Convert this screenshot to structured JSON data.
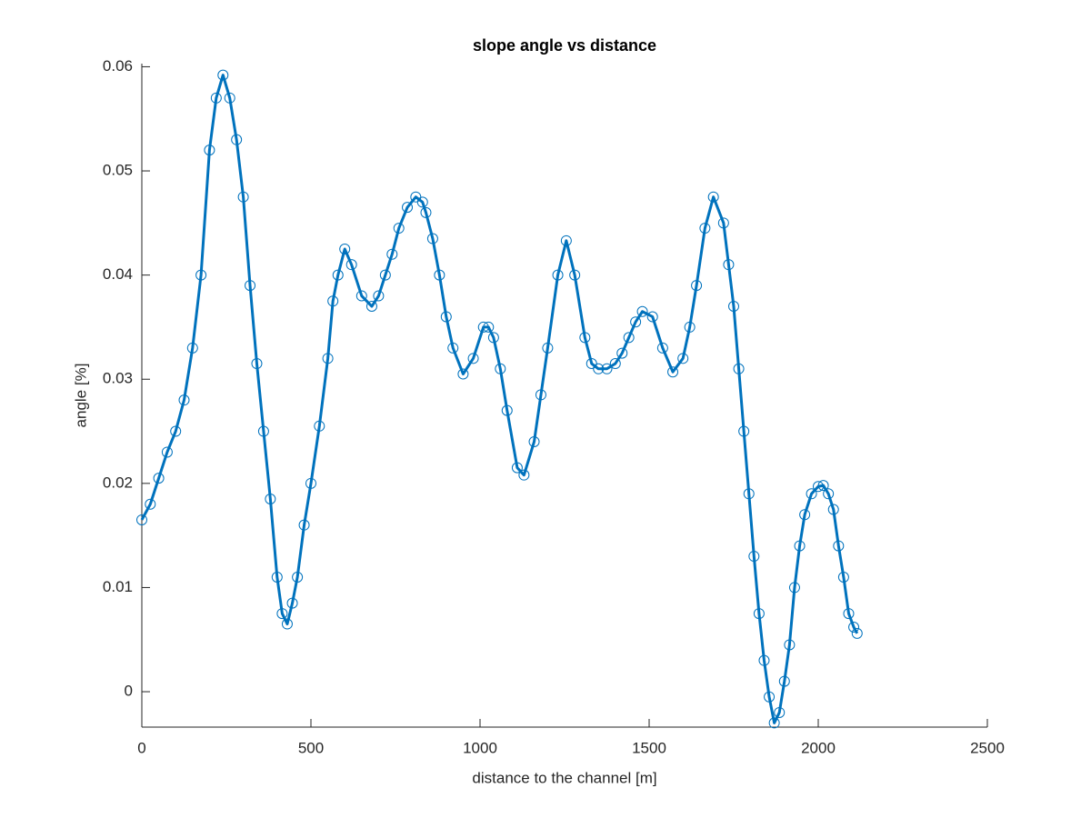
{
  "chart_data": {
    "type": "line",
    "title": "slope angle vs distance",
    "x_label": "distance to the channel [m]",
    "y_label": "angle [%]",
    "x": [
      0,
      25,
      50,
      75,
      100,
      125,
      150,
      175,
      200,
      220,
      240,
      260,
      280,
      300,
      320,
      340,
      360,
      380,
      400,
      415,
      430,
      445,
      460,
      480,
      500,
      525,
      550,
      565,
      580,
      600,
      620,
      650,
      680,
      700,
      720,
      740,
      760,
      785,
      810,
      830,
      840,
      860,
      880,
      900,
      920,
      950,
      980,
      1010,
      1025,
      1040,
      1060,
      1080,
      1110,
      1130,
      1160,
      1180,
      1200,
      1230,
      1255,
      1280,
      1310,
      1330,
      1350,
      1375,
      1400,
      1420,
      1440,
      1460,
      1480,
      1510,
      1540,
      1570,
      1600,
      1620,
      1640,
      1665,
      1690,
      1720,
      1735,
      1750,
      1765,
      1780,
      1795,
      1810,
      1825,
      1840,
      1855,
      1870,
      1885,
      1900,
      1915,
      1930,
      1945,
      1960,
      1980,
      2000,
      2015,
      2030,
      2045,
      2060,
      2075,
      2090,
      2105,
      2115
    ],
    "values": [
      0.0165,
      0.018,
      0.0205,
      0.023,
      0.025,
      0.028,
      0.033,
      0.04,
      0.052,
      0.057,
      0.0592,
      0.057,
      0.053,
      0.0475,
      0.039,
      0.0315,
      0.025,
      0.0185,
      0.011,
      0.0075,
      0.0065,
      0.0085,
      0.011,
      0.016,
      0.02,
      0.0255,
      0.032,
      0.0375,
      0.04,
      0.0425,
      0.041,
      0.038,
      0.037,
      0.038,
      0.04,
      0.042,
      0.0445,
      0.0465,
      0.0475,
      0.047,
      0.046,
      0.0435,
      0.04,
      0.036,
      0.033,
      0.0305,
      0.032,
      0.035,
      0.035,
      0.034,
      0.031,
      0.027,
      0.0215,
      0.0208,
      0.024,
      0.0285,
      0.033,
      0.04,
      0.0433,
      0.04,
      0.034,
      0.0315,
      0.031,
      0.031,
      0.0315,
      0.0325,
      0.034,
      0.0355,
      0.0365,
      0.036,
      0.033,
      0.0307,
      0.032,
      0.035,
      0.039,
      0.0445,
      0.0475,
      0.045,
      0.041,
      0.037,
      0.031,
      0.025,
      0.019,
      0.013,
      0.0075,
      0.003,
      -0.0005,
      -0.003,
      -0.002,
      0.001,
      0.0045,
      0.01,
      0.014,
      0.017,
      0.019,
      0.0197,
      0.0198,
      0.019,
      0.0175,
      0.014,
      0.011,
      0.0075,
      0.0062,
      0.0056
    ],
    "color": "#0072bd",
    "marker": "o",
    "xlim": [
      0,
      2500
    ],
    "xticks": [
      0,
      500,
      1000,
      1500,
      2000,
      2500
    ],
    "ylim": [
      -0.0034,
      0.0603
    ],
    "yticks": [
      0,
      0.01,
      0.02,
      0.03,
      0.04,
      0.05,
      0.06
    ]
  }
}
